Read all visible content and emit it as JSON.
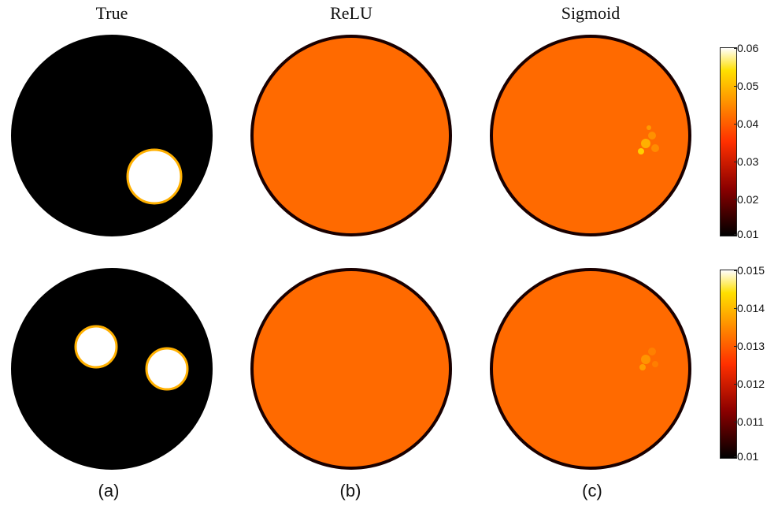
{
  "columns": {
    "true_title": "True",
    "relu_title": "ReLU",
    "sigmoid_title": "Sigmoid"
  },
  "panel_labels": [
    "(a)",
    "(b)",
    "(c)"
  ],
  "colormap": {
    "low": "#000000",
    "mid_dark": "#8b0000",
    "mid": "#ff3000",
    "orange": "#ff6a00",
    "yellow": "#ffe000",
    "high": "#ffffff"
  },
  "colorbars": [
    {
      "ticks": [
        "0.06",
        "0.05",
        "0.04",
        "0.03",
        "0.02",
        "0.01"
      ]
    },
    {
      "ticks": [
        "0.015",
        "0.014",
        "0.013",
        "0.012",
        "0.011",
        "0.01"
      ]
    }
  ]
}
